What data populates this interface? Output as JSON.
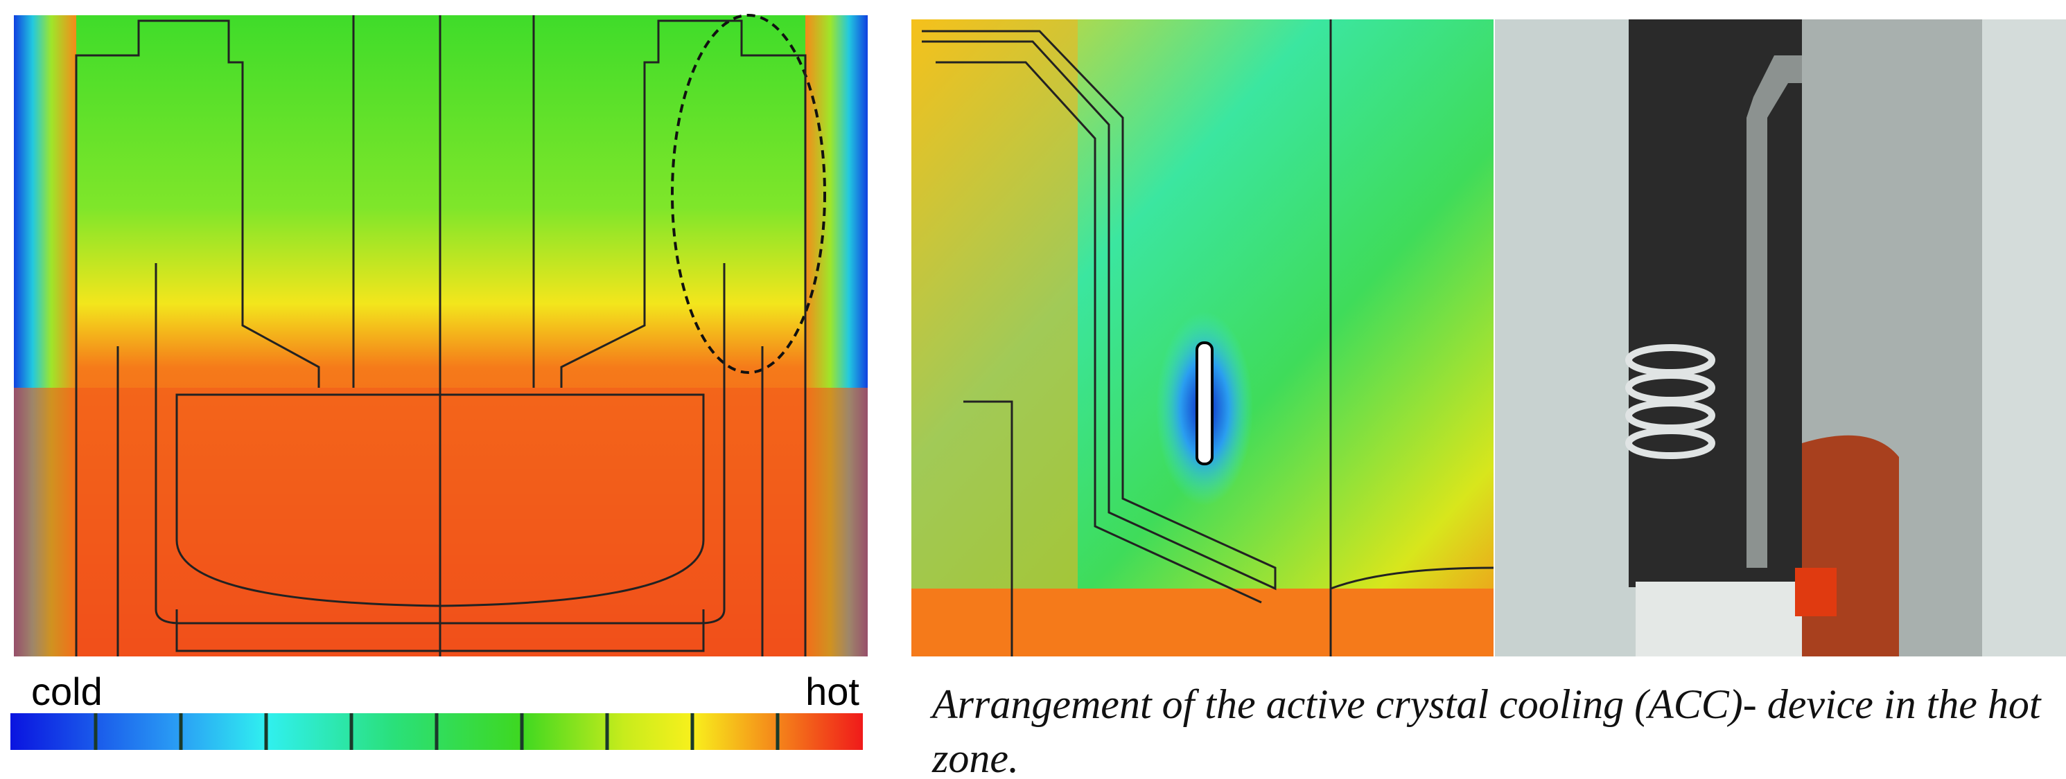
{
  "legend": {
    "low_label": "cold",
    "high_label": "hot"
  },
  "caption": "Arrangement of the active crystal cooling (ACC)- device in the hot zone."
}
